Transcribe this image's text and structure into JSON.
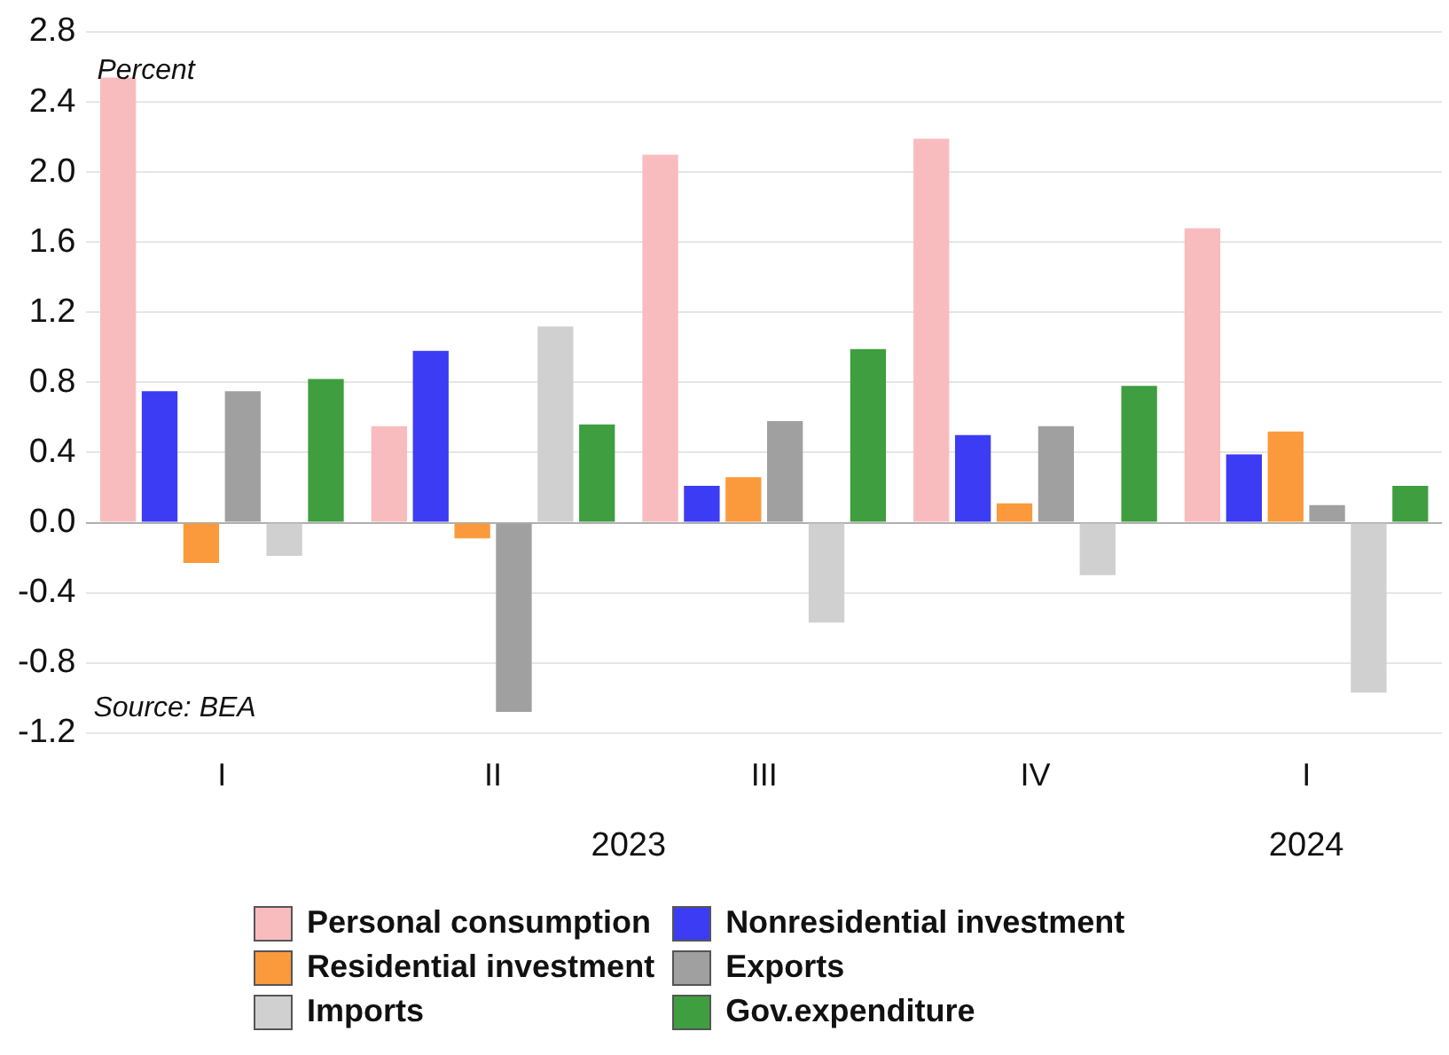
{
  "chart_data": {
    "type": "bar",
    "categories": [
      "I",
      "II",
      "III",
      "IV",
      "I"
    ],
    "series": [
      {
        "name": "Personal consumption",
        "color": "#f9bcbe",
        "values": [
          2.54,
          0.55,
          2.1,
          2.19,
          1.68
        ]
      },
      {
        "name": "Nonresidential investment",
        "color": "#3c3cf5",
        "values": [
          0.75,
          0.98,
          0.21,
          0.5,
          0.39
        ]
      },
      {
        "name": "Residential investment",
        "color": "#fb9a3c",
        "values": [
          -0.23,
          -0.09,
          0.26,
          0.11,
          0.52
        ]
      },
      {
        "name": "Exports",
        "color": "#a0a0a0",
        "values": [
          0.75,
          -1.08,
          0.58,
          0.55,
          0.1
        ]
      },
      {
        "name": "Imports",
        "color": "#d0d0d0",
        "values": [
          -0.19,
          1.12,
          -0.57,
          -0.3,
          -0.97
        ]
      },
      {
        "name": "Gov.expenditure",
        "color": "#3f9e3f",
        "values": [
          0.82,
          0.56,
          0.99,
          0.78,
          0.21
        ]
      }
    ],
    "ylim": [
      -1.2,
      2.8
    ],
    "yticks": [
      -1.2,
      -0.8,
      -0.4,
      {
        "value": 0,
        "label": "0.0"
      },
      0.4,
      0.8,
      1.2,
      1.6,
      {
        "value": 2,
        "label": "2.0"
      },
      2.4,
      2.8
    ],
    "grid": "y",
    "legend": "bottom",
    "annotations": [
      "Percent",
      "Source: BEA",
      "2023",
      "2024"
    ]
  }
}
